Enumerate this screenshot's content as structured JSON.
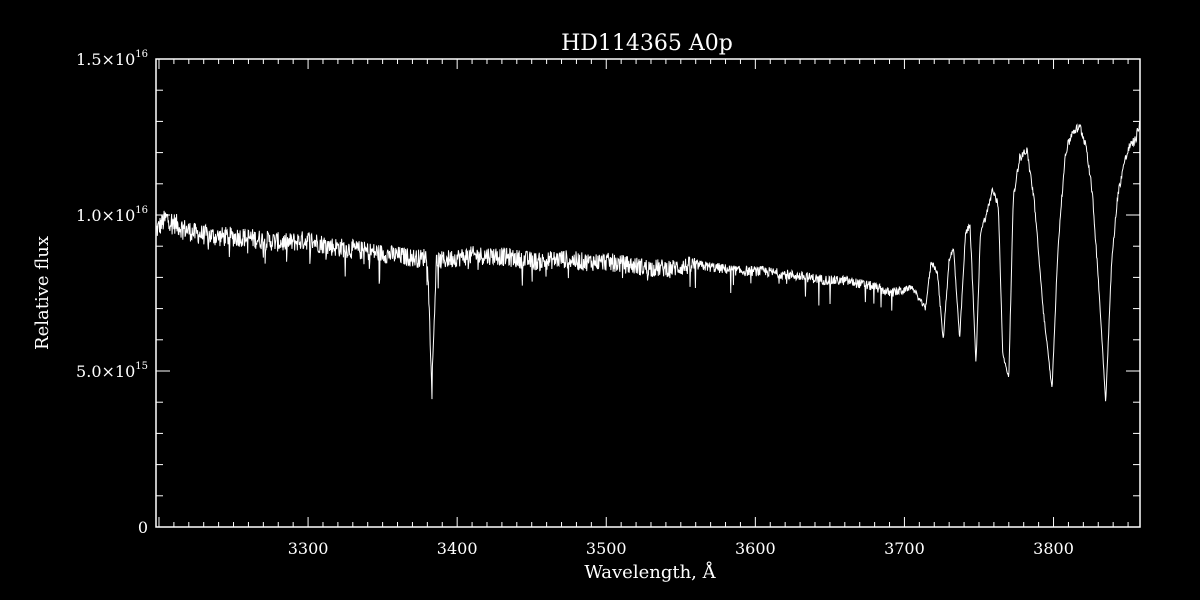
{
  "chart_data": {
    "type": "line",
    "title": "HD114365  A0p",
    "xlabel": "Wavelength, Å",
    "ylabel": "Relative flux",
    "xlim": [
      3198,
      3858
    ],
    "ylim": [
      0,
      1.5e+16
    ],
    "x_ticks": [
      {
        "value": 3300,
        "label": "3300"
      },
      {
        "value": 3400,
        "label": "3400"
      },
      {
        "value": 3500,
        "label": "3500"
      },
      {
        "value": 3600,
        "label": "3600"
      },
      {
        "value": 3700,
        "label": "3700"
      },
      {
        "value": 3800,
        "label": "3800"
      }
    ],
    "y_ticks": [
      {
        "value": 0,
        "mantissa": "0",
        "exponent": ""
      },
      {
        "value": 5000000000000000.0,
        "mantissa": "5.0×10",
        "exponent": "15"
      },
      {
        "value": 1e+16,
        "mantissa": "1.0×10",
        "exponent": "16"
      },
      {
        "value": 1.5e+16,
        "mantissa": "1.5×10",
        "exponent": "16"
      }
    ],
    "series": [
      {
        "color": "#ffffff",
        "x": [
          3198,
          3205,
          3215,
          3225,
          3240,
          3255,
          3270,
          3285,
          3300,
          3315,
          3330,
          3345,
          3360,
          3375,
          3380,
          3383,
          3386,
          3395,
          3410,
          3425,
          3440,
          3455,
          3470,
          3485,
          3500,
          3515,
          3530,
          3545,
          3560,
          3575,
          3590,
          3605,
          3620,
          3635,
          3650,
          3660,
          3670,
          3680,
          3690,
          3700,
          3705,
          3710,
          3714,
          3718,
          3722,
          3726,
          3730,
          3733,
          3737,
          3741,
          3744,
          3748,
          3751,
          3755,
          3759,
          3763,
          3766,
          3770,
          3773,
          3777,
          3782,
          3787,
          3793,
          3799,
          3803,
          3808,
          3813,
          3818,
          3822,
          3826,
          3830,
          3835,
          3839,
          3843,
          3847,
          3851,
          3855,
          3858
        ],
        "y": [
          9500000000000000.0,
          9900000000000000.0,
          9600000000000000.0,
          9400000000000000.0,
          9300000000000000.0,
          9300000000000000.0,
          9200000000000000.0,
          9100000000000000.0,
          9200000000000000.0,
          9000000000000000.0,
          8900000000000000.0,
          8800000000000000.0,
          8700000000000000.0,
          8600000000000000.0,
          8700000000000000.0,
          4500000000000000.0,
          8500000000000000.0,
          8600000000000000.0,
          8700000000000000.0,
          8700000000000000.0,
          8600000000000000.0,
          8500000000000000.0,
          8600000000000000.0,
          8500000000000000.0,
          8500000000000000.0,
          8400000000000000.0,
          8300000000000000.0,
          8300000000000000.0,
          8400000000000000.0,
          8300000000000000.0,
          8200000000000000.0,
          8200000000000000.0,
          8100000000000000.0,
          8000000000000000.0,
          7900000000000000.0,
          7900000000000000.0,
          7800000000000000.0,
          7700000000000000.0,
          7500000000000000.0,
          7600000000000000.0,
          7700000000000000.0,
          7300000000000000.0,
          7000000000000000.0,
          8500000000000000.0,
          8200000000000000.0,
          6000000000000000.0,
          8600000000000000.0,
          8900000000000000.0,
          6000000000000000.0,
          9400000000000000.0,
          9700000000000000.0,
          5200000000000000.0,
          9500000000000000.0,
          1e+16,
          1.08e+16,
          1.03e+16,
          5500000000000000.0,
          4800000000000000.0,
          1.05e+16,
          1.18e+16,
          1.21e+16,
          1.05e+16,
          7000000000000000.0,
          4400000000000000.0,
          9000000000000000.0,
          1.2e+16,
          1.27e+16,
          1.28e+16,
          1.22e+16,
          1.07e+16,
          8000000000000000.0,
          4000000000000000.0,
          8500000000000000.0,
          1.06e+16,
          1.16e+16,
          1.22e+16,
          1.24e+16,
          1.3e+16
        ]
      }
    ]
  }
}
